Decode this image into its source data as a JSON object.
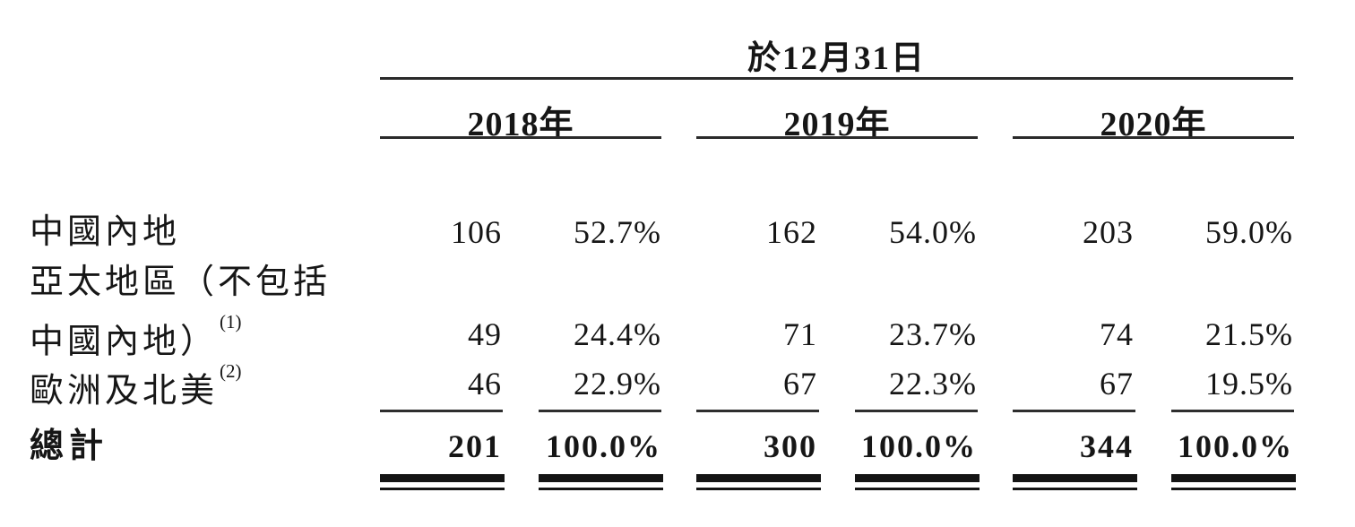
{
  "table": {
    "date_header": "於12月31日",
    "year_headers": [
      "2018年",
      "2019年",
      "2020年"
    ],
    "rows": [
      {
        "label": "中國內地",
        "footnote": "",
        "values": [
          "106",
          "52.7%",
          "162",
          "54.0%",
          "203",
          "59.0%"
        ]
      },
      {
        "label": "亞太地區（不包括",
        "footnote": "",
        "values": [
          "",
          "",
          "",
          "",
          "",
          ""
        ]
      },
      {
        "label": "中國內地）",
        "footnote": "(1)",
        "values": [
          "49",
          "24.4%",
          "71",
          "23.7%",
          "74",
          "21.5%"
        ]
      },
      {
        "label": "歐洲及北美",
        "footnote": "(2)",
        "values": [
          "46",
          "22.9%",
          "67",
          "22.3%",
          "67",
          "19.5%"
        ]
      }
    ],
    "total_row": {
      "label": "總計",
      "values": [
        "201",
        "100.0%",
        "300",
        "100.0%",
        "344",
        "100.0%"
      ]
    }
  },
  "colors": {
    "text": "#161616",
    "rule_thin": "#2a2a2a",
    "rule_heavy": "#141414",
    "background": "#ffffff"
  }
}
